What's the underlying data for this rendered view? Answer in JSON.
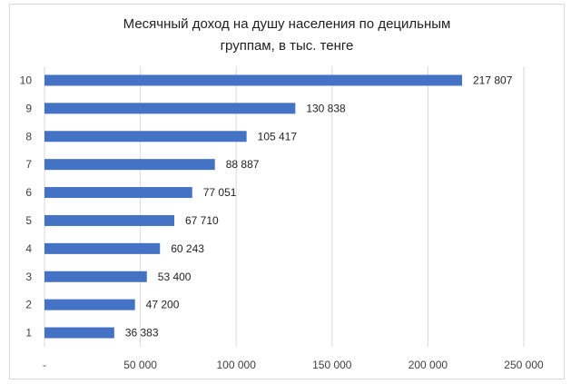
{
  "chart_data": {
    "type": "bar",
    "orientation": "horizontal",
    "title_lines": [
      "Месячный доход на душу населения по децильным",
      "группам, в тыс. тенге"
    ],
    "categories": [
      "1",
      "2",
      "3",
      "4",
      "5",
      "6",
      "7",
      "8",
      "9",
      "10"
    ],
    "values": [
      36383,
      47200,
      53400,
      60243,
      67710,
      77051,
      88887,
      105417,
      130838,
      217807
    ],
    "data_labels": [
      "36 383",
      "47 200",
      "53 400",
      "60 243",
      "67 710",
      "77 051",
      "88 887",
      "105 417",
      "130 838",
      "217 807"
    ],
    "xlim": [
      0,
      250000
    ],
    "x_ticks": [
      0,
      50000,
      100000,
      150000,
      200000,
      250000
    ],
    "x_tick_labels": [
      "-",
      "50 000",
      "100 000",
      "150 000",
      "200 000",
      "250 000"
    ],
    "grid": "vertical",
    "bar_color": "#4472c4",
    "grid_color": "#d9d9d9"
  }
}
